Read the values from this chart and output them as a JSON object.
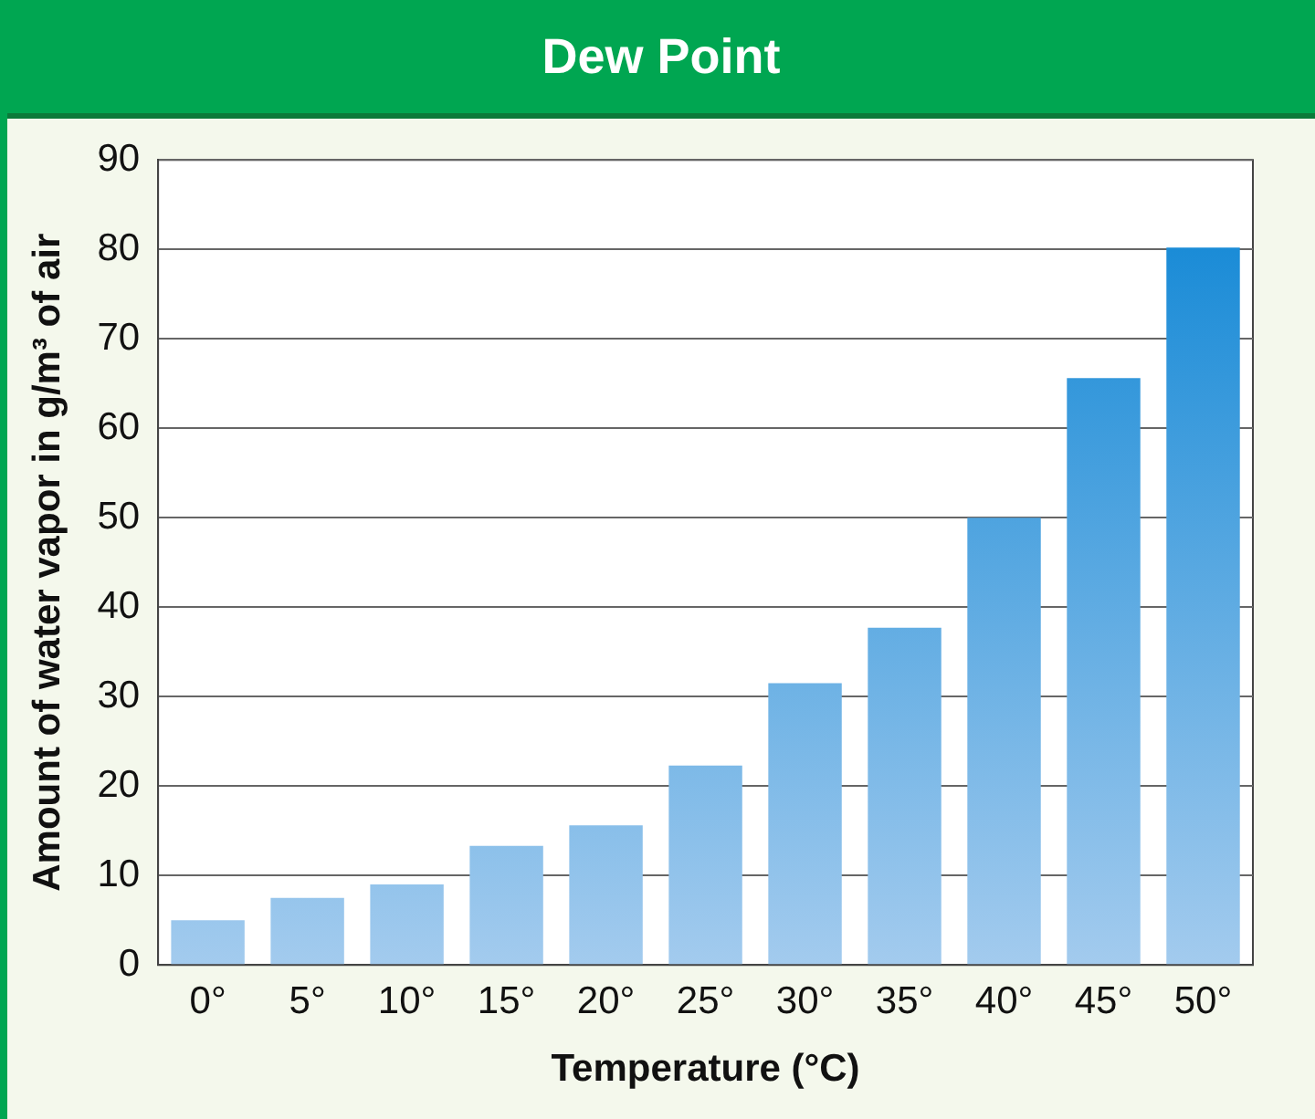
{
  "chart_data": {
    "type": "bar",
    "title": "Dew Point",
    "xlabel": "Temperature (°C)",
    "ylabel": "Amount of water vapor in g/m³ of air",
    "categories": [
      "0°",
      "5°",
      "10°",
      "15°",
      "20°",
      "25°",
      "30°",
      "35°",
      "40°",
      "45°",
      "50°"
    ],
    "values": [
      5.0,
      7.5,
      9.0,
      13.3,
      15.6,
      22.3,
      31.5,
      37.7,
      50.0,
      65.6,
      80.2
    ],
    "color": "#0a84d4",
    "ylim": [
      0,
      90
    ],
    "yticks": [
      0,
      10,
      20,
      30,
      40,
      50,
      60,
      70,
      80,
      90
    ],
    "grid": "y",
    "legend": false
  }
}
